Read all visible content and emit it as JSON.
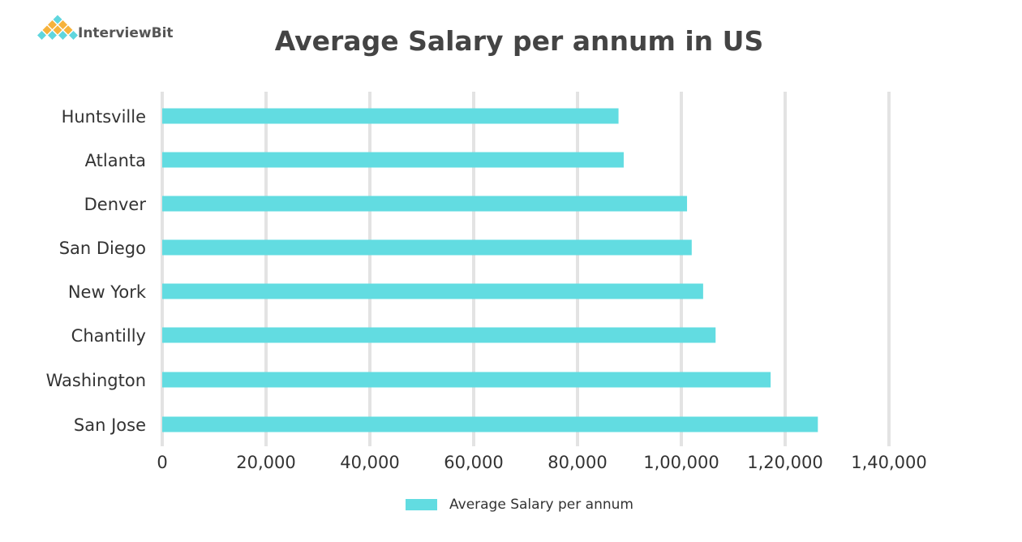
{
  "logo": {
    "text": "InterviewBit",
    "colors": [
      "#5fd6de",
      "#f6b23c"
    ]
  },
  "chart_data": {
    "type": "bar",
    "orientation": "horizontal",
    "title": "Average Salary per annum in US",
    "xlabel": "",
    "ylabel": "",
    "categories": [
      "Huntsville",
      "Atlanta",
      "Denver",
      "San Diego",
      "New York",
      "Chantilly",
      "Washington",
      "San Jose"
    ],
    "series": [
      {
        "name": "Average Salary per annum",
        "color": "#62dce1",
        "values": [
          87900,
          88900,
          101100,
          102000,
          104200,
          106600,
          117200,
          126300
        ]
      }
    ],
    "xlim": [
      0,
      140000
    ],
    "xticks": [
      0,
      20000,
      40000,
      60000,
      80000,
      100000,
      120000,
      140000
    ],
    "xtick_labels": [
      "0",
      "20,000",
      "40,000",
      "60,000",
      "80,000",
      "1,00,000",
      "1,20,000",
      "1,40,000"
    ],
    "grid": "vertical",
    "gridline_color": "#e3e3e3",
    "legend": "bottom"
  }
}
